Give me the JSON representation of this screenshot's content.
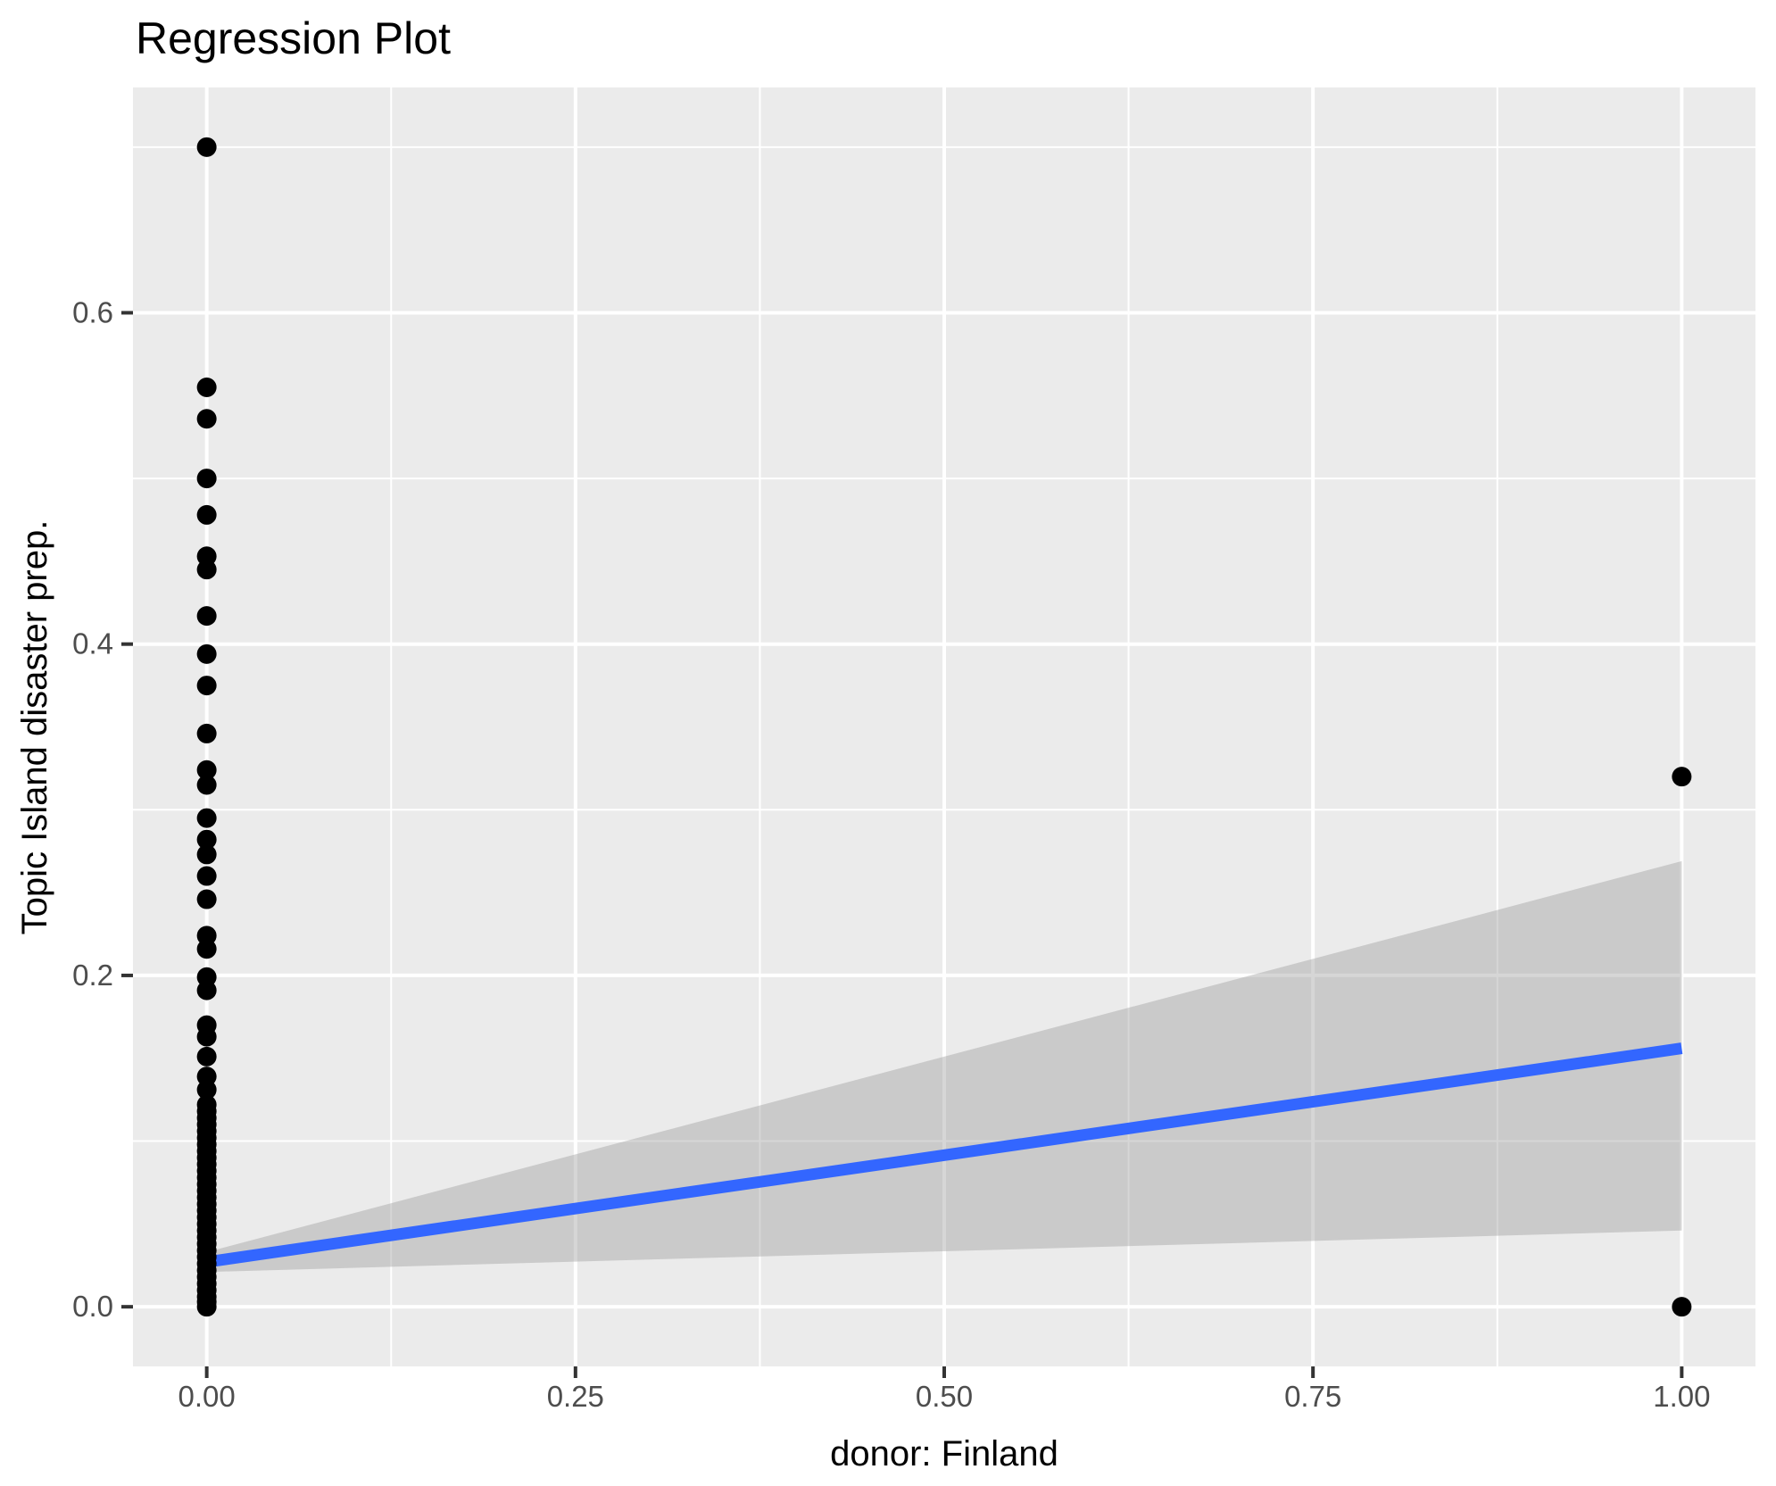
{
  "page": {
    "background": "#FFFFFF"
  },
  "chart_data": {
    "type": "scatter",
    "title": "Regression Plot",
    "xlabel": "donor: Finland",
    "ylabel": "Topic Island disaster prep.",
    "xlim": [
      -0.05,
      1.05
    ],
    "ylim": [
      -0.036,
      0.736
    ],
    "grid": true,
    "legend": "none",
    "x_ticks": {
      "values": [
        0,
        0.25,
        0.5,
        0.75,
        1.0
      ],
      "labels": [
        "0.00",
        "0.25",
        "0.50",
        "0.75",
        "1.00"
      ]
    },
    "y_ticks": {
      "values": [
        0,
        0.2,
        0.4,
        0.6
      ],
      "labels": [
        "0.0",
        "0.2",
        "0.4",
        "0.6"
      ]
    },
    "x_minor": [
      0.125,
      0.375,
      0.625,
      0.875
    ],
    "y_minor": [
      0.1,
      0.3,
      0.5,
      0.7
    ],
    "points": [
      [
        0,
        0.7
      ],
      [
        0,
        0.555
      ],
      [
        0,
        0.536
      ],
      [
        0,
        0.5
      ],
      [
        0,
        0.478
      ],
      [
        0,
        0.453
      ],
      [
        0,
        0.445
      ],
      [
        0,
        0.417
      ],
      [
        0,
        0.394
      ],
      [
        0,
        0.375
      ],
      [
        0,
        0.346
      ],
      [
        0,
        0.324
      ],
      [
        0,
        0.315
      ],
      [
        0,
        0.295
      ],
      [
        0,
        0.282
      ],
      [
        0,
        0.273
      ],
      [
        0,
        0.26
      ],
      [
        0,
        0.246
      ],
      [
        0,
        0.224
      ],
      [
        0,
        0.216
      ],
      [
        0,
        0.199
      ],
      [
        0,
        0.191
      ],
      [
        0,
        0.17
      ],
      [
        0,
        0.163
      ],
      [
        0,
        0.151
      ],
      [
        0,
        0.139
      ],
      [
        0,
        0.131
      ],
      [
        0,
        0.122
      ],
      [
        0,
        0.118
      ],
      [
        0,
        0.114
      ],
      [
        0,
        0.11
      ],
      [
        0,
        0.106
      ],
      [
        0,
        0.102
      ],
      [
        0,
        0.098
      ],
      [
        0,
        0.094
      ],
      [
        0,
        0.09
      ],
      [
        0,
        0.086
      ],
      [
        0,
        0.082
      ],
      [
        0,
        0.078
      ],
      [
        0,
        0.074
      ],
      [
        0,
        0.07
      ],
      [
        0,
        0.066
      ],
      [
        0,
        0.062
      ],
      [
        0,
        0.058
      ],
      [
        0,
        0.054
      ],
      [
        0,
        0.05
      ],
      [
        0,
        0.046
      ],
      [
        0,
        0.042
      ],
      [
        0,
        0.038
      ],
      [
        0,
        0.034
      ],
      [
        0,
        0.03
      ],
      [
        0,
        0.026
      ],
      [
        0,
        0.022
      ],
      [
        0,
        0.018
      ],
      [
        0,
        0.014
      ],
      [
        0,
        0.01
      ],
      [
        0,
        0.006
      ],
      [
        0,
        0.003
      ],
      [
        0,
        0.0
      ],
      [
        1,
        0.32
      ],
      [
        1,
        0.0
      ]
    ],
    "fit_line": {
      "x": [
        0,
        1
      ],
      "y": [
        0.027,
        0.156
      ]
    },
    "ci_band": {
      "x": [
        0,
        1
      ],
      "upper": [
        0.033,
        0.269
      ],
      "lower": [
        0.021,
        0.046
      ]
    },
    "style": {
      "panel_bg": "#EBEBEB",
      "grid_color": "#FFFFFF",
      "point_color": "#000000",
      "line_color": "#3366FF",
      "band_color": "rgba(153,153,153,0.4)",
      "tick_label_color": "#4D4D4D",
      "tick_mark_color": "#333333",
      "title_color": "#000000"
    }
  }
}
